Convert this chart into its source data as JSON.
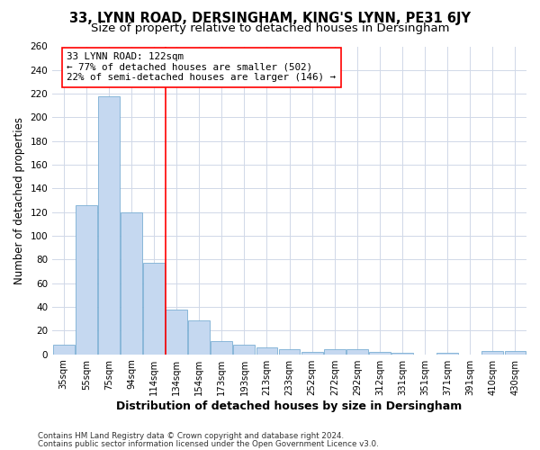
{
  "title": "33, LYNN ROAD, DERSINGHAM, KING'S LYNN, PE31 6JY",
  "subtitle": "Size of property relative to detached houses in Dersingham",
  "xlabel": "Distribution of detached houses by size in Dersingham",
  "ylabel": "Number of detached properties",
  "categories": [
    "35sqm",
    "55sqm",
    "75sqm",
    "94sqm",
    "114sqm",
    "134sqm",
    "154sqm",
    "173sqm",
    "193sqm",
    "213sqm",
    "233sqm",
    "252sqm",
    "272sqm",
    "292sqm",
    "312sqm",
    "331sqm",
    "351sqm",
    "371sqm",
    "391sqm",
    "410sqm",
    "430sqm"
  ],
  "values": [
    8,
    126,
    218,
    120,
    77,
    38,
    29,
    11,
    8,
    6,
    4,
    2,
    4,
    4,
    2,
    1,
    0,
    1,
    0,
    3,
    3
  ],
  "bar_color": "#c5d8f0",
  "bar_edge_color": "#7bafd4",
  "red_line_x": 4.5,
  "annotation_text": "33 LYNN ROAD: 122sqm\n← 77% of detached houses are smaller (502)\n22% of semi-detached houses are larger (146) →",
  "ylim": [
    0,
    260
  ],
  "yticks": [
    0,
    20,
    40,
    60,
    80,
    100,
    120,
    140,
    160,
    180,
    200,
    220,
    240,
    260
  ],
  "footer_line1": "Contains HM Land Registry data © Crown copyright and database right 2024.",
  "footer_line2": "Contains public sector information licensed under the Open Government Licence v3.0.",
  "bg_color": "#ffffff",
  "plot_bg_color": "#ffffff",
  "grid_color": "#d0d8e8",
  "title_fontsize": 10.5,
  "subtitle_fontsize": 9.5
}
